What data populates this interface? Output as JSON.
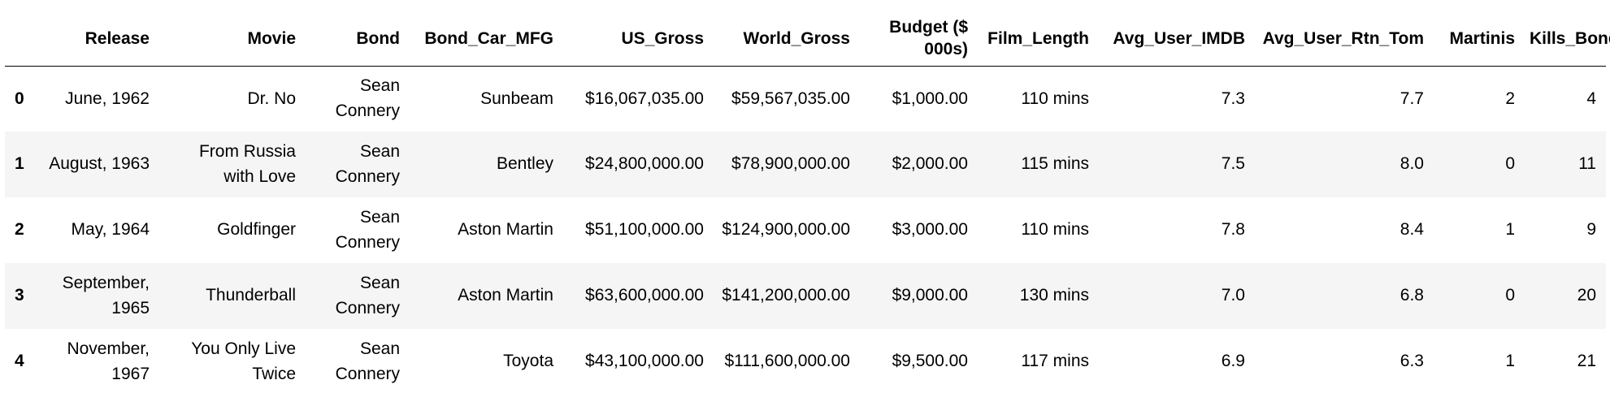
{
  "table": {
    "columns": [
      "",
      "Release",
      "Movie",
      "Bond",
      "Bond_Car_MFG",
      "US_Gross",
      "World_Gross",
      "Budget ($ 000s)",
      "Film_Length",
      "Avg_User_IMDB",
      "Avg_User_Rtn_Tom",
      "Martinis",
      "Kills_Bond"
    ],
    "rows": [
      {
        "index": "0",
        "release": "June, 1962",
        "movie": "Dr. No",
        "bond": "Sean Connery",
        "car": "Sunbeam",
        "us_gross": "$16,067,035.00",
        "world_gross": "$59,567,035.00",
        "budget": "$1,000.00",
        "length": "110 mins",
        "imdb": "7.3",
        "tom": "7.7",
        "martinis": "2",
        "kills": "4"
      },
      {
        "index": "1",
        "release": "August, 1963",
        "movie": "From Russia with Love",
        "bond": "Sean Connery",
        "car": "Bentley",
        "us_gross": "$24,800,000.00",
        "world_gross": "$78,900,000.00",
        "budget": "$2,000.00",
        "length": "115 mins",
        "imdb": "7.5",
        "tom": "8.0",
        "martinis": "0",
        "kills": "11"
      },
      {
        "index": "2",
        "release": "May, 1964",
        "movie": "Goldfinger",
        "bond": "Sean Connery",
        "car": "Aston Martin",
        "us_gross": "$51,100,000.00",
        "world_gross": "$124,900,000.00",
        "budget": "$3,000.00",
        "length": "110 mins",
        "imdb": "7.8",
        "tom": "8.4",
        "martinis": "1",
        "kills": "9"
      },
      {
        "index": "3",
        "release": "September, 1965",
        "movie": "Thunderball",
        "bond": "Sean Connery",
        "car": "Aston Martin",
        "us_gross": "$63,600,000.00",
        "world_gross": "$141,200,000.00",
        "budget": "$9,000.00",
        "length": "130 mins",
        "imdb": "7.0",
        "tom": "6.8",
        "martinis": "0",
        "kills": "20"
      },
      {
        "index": "4",
        "release": "November, 1967",
        "movie": "You Only Live Twice",
        "bond": "Sean Connery",
        "car": "Toyota",
        "us_gross": "$43,100,000.00",
        "world_gross": "$111,600,000.00",
        "budget": "$9,500.00",
        "length": "117 mins",
        "imdb": "6.9",
        "tom": "6.3",
        "martinis": "1",
        "kills": "21"
      }
    ]
  }
}
